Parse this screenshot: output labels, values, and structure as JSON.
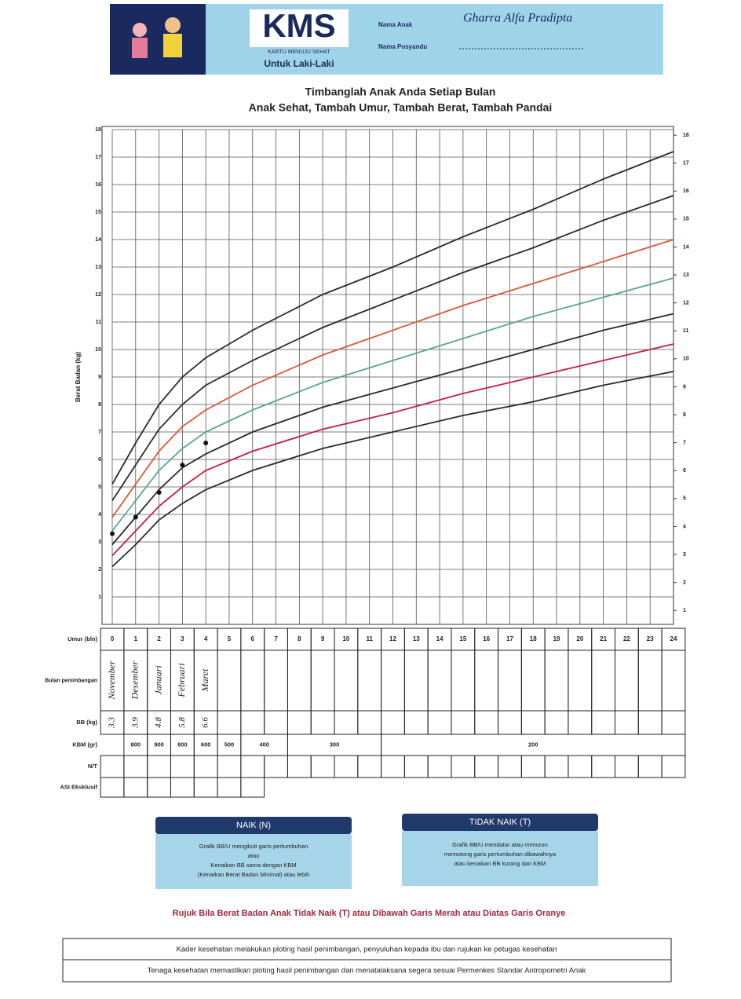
{
  "header": {
    "logo": "KMS",
    "logo_sub": "KARTU MENUJU SEHAT",
    "gender": "Untuk Laki-Laki",
    "child_name_label": "Nama Anak",
    "child_name": "Gharra Alfa Pradipta",
    "posyandu_label": "Nama Posyandu"
  },
  "titles": [
    "Timbanglah Anak Anda Setiap Bulan",
    "Anak Sehat, Tambah Umur, Tambah Berat, Tambah Pandai"
  ],
  "chart_data": {
    "type": "line",
    "y_label": "Berat Badan (kg)",
    "x": [
      0,
      1,
      2,
      3,
      4,
      6,
      9,
      12,
      15,
      18,
      21,
      24
    ],
    "xlim": [
      0,
      24
    ],
    "xticks": [
      0,
      1,
      2,
      3,
      4,
      5,
      6,
      7,
      8,
      9,
      10,
      11,
      12,
      13,
      14,
      15,
      16,
      17,
      18,
      19,
      20,
      21,
      22,
      23,
      24
    ],
    "ylim": [
      0,
      18
    ],
    "yticks": [
      1,
      2,
      3,
      4,
      5,
      6,
      7,
      8,
      9,
      10,
      11,
      12,
      13,
      14,
      15,
      16,
      17,
      18
    ],
    "y2lim": [
      0.5,
      18.2
    ],
    "y2ticks": [
      1,
      2,
      3,
      4,
      5,
      6,
      7,
      8,
      9,
      10,
      11,
      12,
      13,
      14,
      15,
      16,
      17,
      18
    ],
    "grid": true,
    "series": [
      {
        "color": "#2b2b2b",
        "values": [
          5.1,
          6.6,
          8.0,
          9.0,
          9.7,
          10.7,
          12.0,
          13.0,
          14.1,
          15.1,
          16.2,
          17.2
        ]
      },
      {
        "color": "#2b2b2b",
        "values": [
          4.5,
          5.8,
          7.1,
          8.0,
          8.7,
          9.6,
          10.8,
          11.8,
          12.8,
          13.7,
          14.7,
          15.6
        ]
      },
      {
        "color": "#d9573d",
        "values": [
          3.9,
          5.1,
          6.3,
          7.2,
          7.8,
          8.7,
          9.8,
          10.7,
          11.6,
          12.4,
          13.2,
          14.0
        ]
      },
      {
        "color": "#5aa58a",
        "values": [
          3.4,
          4.5,
          5.6,
          6.4,
          7.0,
          7.8,
          8.8,
          9.6,
          10.4,
          11.2,
          11.9,
          12.6
        ]
      },
      {
        "color": "#2b2b2b",
        "values": [
          2.9,
          3.9,
          4.9,
          5.7,
          6.2,
          7.0,
          7.9,
          8.6,
          9.3,
          10.0,
          10.7,
          11.3
        ]
      },
      {
        "color": "#c2203f",
        "values": [
          2.5,
          3.4,
          4.3,
          5.0,
          5.6,
          6.3,
          7.1,
          7.7,
          8.4,
          9.0,
          9.6,
          10.2
        ]
      },
      {
        "color": "#2b2b2b",
        "values": [
          2.1,
          2.9,
          3.8,
          4.4,
          4.9,
          5.6,
          6.4,
          7.0,
          7.6,
          8.1,
          8.7,
          9.2
        ]
      }
    ],
    "points": {
      "color": "#111111",
      "x": [
        0,
        1,
        2,
        3,
        4
      ],
      "values": [
        3.3,
        3.9,
        4.8,
        5.8,
        6.6
      ]
    }
  },
  "table": {
    "row_labels": [
      "Umur (bln)",
      "Bulan penimbangan",
      "BB (kg)",
      "KBM (gr)",
      "N/T",
      "ASI Eksklusif"
    ],
    "months": [
      "November",
      "Desember",
      "Januari",
      "Februari",
      "Maret"
    ],
    "kbm": [
      {
        "text": "800",
        "from": 1,
        "to": 1
      },
      {
        "text": "900",
        "from": 2,
        "to": 2
      },
      {
        "text": "800",
        "from": 3,
        "to": 3
      },
      {
        "text": "600",
        "from": 4,
        "to": 4
      },
      {
        "text": "500",
        "from": 5,
        "to": 5
      },
      {
        "text": "400",
        "from": 6,
        "to": 7
      },
      {
        "text": "300",
        "from": 8,
        "to": 11
      },
      {
        "text": "200",
        "from": 12,
        "to": 24
      }
    ]
  },
  "naik": {
    "title": "NAIK (N)",
    "lines": [
      "Grafik BB/U mengikuti garis pertumbuhan",
      "atau",
      "Kenaikan BB sama dengan KBM",
      "(Kenaikan Berat Badan Minimal) atau lebih"
    ]
  },
  "tidak_naik": {
    "title": "TIDAK NAIK (T)",
    "lines": [
      "Grafik BB/U mendatar atau menurun",
      "memotong garis pertumbuhan dibawahnya",
      "atau kenaikan BB kurang dari KBM"
    ]
  },
  "referral": "Rujuk Bila Berat Badan Anak Tidak Naik (T) atau Dibawah Garis Merah atau Diatas Garis Oranye",
  "footer": [
    "Kader kesehatan melakukan ploting hasil penimbangan, penyuluhan kepada ibu dan rujukan ke petugas kesehatan",
    "Tenaga kesehatan memastikan ploting hasil penimbangan dan menatalaksana segera sesuai Permenkes Standar Antropometri Anak"
  ]
}
